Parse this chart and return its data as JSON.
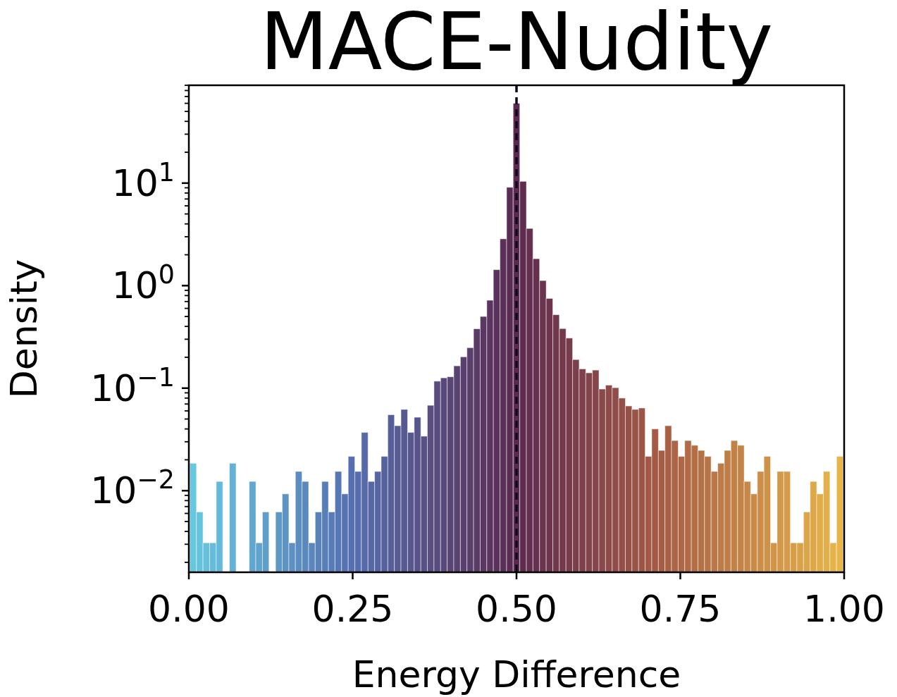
{
  "chart_data": {
    "type": "histogram",
    "title": "MACE-Nudity",
    "xlabel": "Energy Difference",
    "ylabel": "Density",
    "bins": [
      0.0015,
      0.0116,
      0.0216,
      0.0317,
      0.0418,
      0.0518,
      0.0619,
      0.072,
      0.0821,
      0.0921,
      0.1022,
      0.1123,
      0.1223,
      0.1324,
      0.1425,
      0.1526,
      0.1626,
      0.1727,
      0.1828,
      0.1928,
      0.2029,
      0.213,
      0.223,
      0.2331,
      0.2432,
      0.2533,
      0.2633,
      0.2734,
      0.2835,
      0.2935,
      0.3036,
      0.3137,
      0.3237,
      0.3338,
      0.3439,
      0.354,
      0.364,
      0.3741,
      0.3842,
      0.3942,
      0.4043,
      0.4144,
      0.4244,
      0.4345,
      0.4446,
      0.4547,
      0.4647,
      0.4748,
      0.4849,
      0.4949,
      0.505,
      0.5151,
      0.5251,
      0.5352,
      0.5453,
      0.5554,
      0.5654,
      0.5755,
      0.5856,
      0.5956,
      0.6057,
      0.6158,
      0.6258,
      0.6359,
      0.646,
      0.656,
      0.6661,
      0.6762,
      0.6863,
      0.6963,
      0.7064,
      0.7165,
      0.7265,
      0.7366,
      0.7467,
      0.7567,
      0.7668,
      0.7769,
      0.787,
      0.797,
      0.8071,
      0.8172,
      0.8272,
      0.8373,
      0.8474,
      0.8574,
      0.8675,
      0.8776,
      0.8877,
      0.8977,
      0.9078,
      0.9179,
      0.9279,
      0.938,
      0.9481,
      0.9581,
      0.9682,
      0.9783,
      0.9884,
      0.9984
    ],
    "values": [
      0.0185,
      0.0062,
      0.0031,
      0.0031,
      0.0123,
      null,
      0.0185,
      null,
      null,
      0.0123,
      0.0031,
      0.0062,
      null,
      0.0062,
      0.0093,
      0.0031,
      0.0154,
      0.0123,
      0.0031,
      0.0062,
      0.0123,
      0.0062,
      0.0154,
      0.0093,
      0.0216,
      0.0154,
      0.037,
      0.0123,
      0.0154,
      0.0216,
      0.055,
      0.043,
      0.062,
      0.037,
      0.052,
      0.034,
      0.068,
      0.117,
      0.126,
      0.129,
      0.165,
      0.202,
      0.248,
      0.379,
      0.5,
      0.72,
      1.43,
      2.86,
      9.1,
      60,
      10.4,
      3.61,
      1.83,
      1.12,
      0.75,
      0.52,
      0.381,
      0.308,
      0.19,
      0.154,
      0.141,
      0.15,
      0.098,
      0.107,
      0.101,
      0.08,
      0.067,
      0.062,
      0.064,
      0.0216,
      0.04,
      0.0247,
      0.043,
      0.0308,
      0.0216,
      0.0308,
      0.0277,
      0.0247,
      0.0216,
      0.0154,
      0.0185,
      0.0247,
      0.0308,
      0.0277,
      0.0123,
      0.0093,
      0.0154,
      0.0216,
      0.0031,
      0.0154,
      0.0154,
      0.0031,
      0.0031,
      0.0062,
      0.0123,
      0.0093,
      0.0154,
      0.0031,
      0.0216
    ],
    "colors": [
      "#67c7e0",
      "#66c3de",
      "#66c0dc",
      "#65bcda",
      "#64b9d8",
      null,
      "#63b1d4",
      null,
      null,
      "#60a6ce",
      "#60a3cc",
      "#5f9fca",
      null,
      "#5d98c6",
      "#5d94c4",
      "#5c91c2",
      "#5b8dc0",
      "#5a89be",
      "#5a86bc",
      "#5982ba",
      "#587eb8",
      "#577bb6",
      "#5777b4",
      "#5674b2",
      "#5570b0",
      "#556dac",
      "#566aa8",
      "#5668a4",
      "#5665a1",
      "#56629d",
      "#575f99",
      "#575c95",
      "#575a91",
      "#58578d",
      "#58548a",
      "#585186",
      "#584e82",
      "#594c7e",
      "#59497a",
      "#594676",
      "#594373",
      "#5a406f",
      "#5a3e6b",
      "#5a3b67",
      "#5b3863",
      "#5b355f",
      "#5b325c",
      "#5b3058",
      "#5b2d54",
      "#5c2a50",
      "#5f2c4f",
      "#632f4f",
      "#66314e",
      "#6a334e",
      "#6d354d",
      "#71384d",
      "#743a4c",
      "#773c4c",
      "#7b3f4b",
      "#7e414b",
      "#82434a",
      "#85454a",
      "#894849",
      "#8c4a49",
      "#8f4c48",
      "#934f48",
      "#965147",
      "#9a5347",
      "#9d5546",
      "#a15846",
      "#a45a45",
      "#a65d45",
      "#a96145",
      "#ab6446",
      "#ae6746",
      "#b06a46",
      "#b36e46",
      "#b57146",
      "#b77446",
      "#ba7747",
      "#bc7b47",
      "#bf7e47",
      "#c18147",
      "#c48447",
      "#c68848",
      "#c88b48",
      "#cb8e48",
      "#cd9148",
      "#d09548",
      "#d29848",
      "#d59b49",
      "#d79e49",
      "#d9a249",
      "#dca549",
      "#dea849",
      "#e1ab4a",
      "#e3af4a",
      "#e6b24a",
      "#e8b54a"
    ],
    "log": "y",
    "xlim": [
      0,
      1
    ],
    "ylim": [
      0.0016,
      90
    ],
    "xticks": [
      {
        "value": 0,
        "label": "0.00"
      },
      {
        "value": 0.25,
        "label": "0.25"
      },
      {
        "value": 0.5,
        "label": "0.50"
      },
      {
        "value": 0.75,
        "label": "0.75"
      },
      {
        "value": 1,
        "label": "1.00"
      }
    ],
    "yticks": [
      {
        "value": 0.002,
        "label": null
      },
      {
        "value": 0.003,
        "label": null
      },
      {
        "value": 0.004,
        "label": null
      },
      {
        "value": 0.005,
        "label": null
      },
      {
        "value": 0.006,
        "label": null
      },
      {
        "value": 0.007,
        "label": null
      },
      {
        "value": 0.008,
        "label": null
      },
      {
        "value": 0.009,
        "label": null
      },
      {
        "value": 0.01,
        "label": "10$^{−2}$"
      },
      {
        "value": 0.02,
        "label": null
      },
      {
        "value": 0.03,
        "label": null
      },
      {
        "value": 0.04,
        "label": null
      },
      {
        "value": 0.05,
        "label": null
      },
      {
        "value": 0.06,
        "label": null
      },
      {
        "value": 0.07,
        "label": null
      },
      {
        "value": 0.08,
        "label": null
      },
      {
        "value": 0.09,
        "label": null
      },
      {
        "value": 0.1,
        "label": "10$^{−1}$"
      },
      {
        "value": 0.2,
        "label": null
      },
      {
        "value": 0.3,
        "label": null
      },
      {
        "value": 0.4,
        "label": null
      },
      {
        "value": 0.5,
        "label": null
      },
      {
        "value": 0.6,
        "label": null
      },
      {
        "value": 0.7,
        "label": null
      },
      {
        "value": 0.8,
        "label": null
      },
      {
        "value": 0.9,
        "label": null
      },
      {
        "value": 1,
        "label": "10$^{0}$"
      },
      {
        "value": 2,
        "label": null
      },
      {
        "value": 3,
        "label": null
      },
      {
        "value": 4,
        "label": null
      },
      {
        "value": 5,
        "label": null
      },
      {
        "value": 6,
        "label": null
      },
      {
        "value": 7,
        "label": null
      },
      {
        "value": 8,
        "label": null
      },
      {
        "value": 9,
        "label": null
      },
      {
        "value": 10,
        "label": "10$^{1}$"
      },
      {
        "value": 20,
        "label": null
      },
      {
        "value": 30,
        "label": null
      },
      {
        "value": 40,
        "label": null
      },
      {
        "value": 50,
        "label": null
      },
      {
        "value": 60,
        "label": null
      },
      {
        "value": 70,
        "label": null
      },
      {
        "value": 80,
        "label": null
      },
      {
        "value": 90,
        "label": null
      }
    ],
    "ref_lines": [
      {
        "axis": "x",
        "value": 0.5,
        "color": "#0a0a1a",
        "line_style": "dashed"
      }
    ],
    "grid": false
  }
}
